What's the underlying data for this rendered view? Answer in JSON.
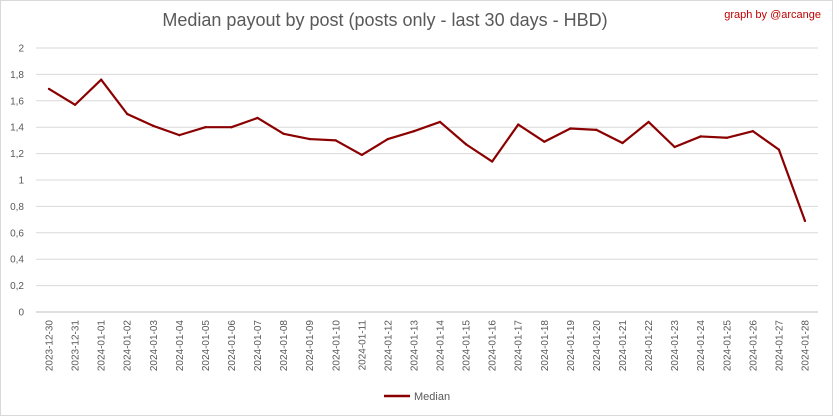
{
  "chart_data": {
    "type": "line",
    "title": "Median payout by post (posts only - last 30 days - HBD)",
    "credit": "graph by @arcange",
    "xlabel": "",
    "ylabel": "",
    "ylim": [
      0,
      2
    ],
    "yticks": [
      "0",
      "0,2",
      "0,4",
      "0,6",
      "0,8",
      "1",
      "1,2",
      "1,4",
      "1,6",
      "1,8",
      "2"
    ],
    "grid": true,
    "legend_position": "bottom",
    "categories": [
      "2023-12-30",
      "2023-12-31",
      "2024-01-01",
      "2024-01-02",
      "2024-01-03",
      "2024-01-04",
      "2024-01-05",
      "2024-01-06",
      "2024-01-07",
      "2024-01-08",
      "2024-01-09",
      "2024-01-10",
      "2024-01-11",
      "2024-01-12",
      "2024-01-13",
      "2024-01-14",
      "2024-01-15",
      "2024-01-16",
      "2024-01-17",
      "2024-01-18",
      "2024-01-19",
      "2024-01-20",
      "2024-01-21",
      "2024-01-22",
      "2024-01-23",
      "2024-01-24",
      "2024-01-25",
      "2024-01-26",
      "2024-01-27",
      "2024-01-28"
    ],
    "series": [
      {
        "name": "Median",
        "color": "#8b0000",
        "values": [
          1.69,
          1.57,
          1.76,
          1.5,
          1.41,
          1.34,
          1.4,
          1.4,
          1.47,
          1.35,
          1.31,
          1.3,
          1.19,
          1.31,
          1.37,
          1.44,
          1.27,
          1.14,
          1.42,
          1.29,
          1.39,
          1.38,
          1.28,
          1.44,
          1.25,
          1.33,
          1.32,
          1.37,
          1.23,
          0.69
        ]
      }
    ]
  }
}
